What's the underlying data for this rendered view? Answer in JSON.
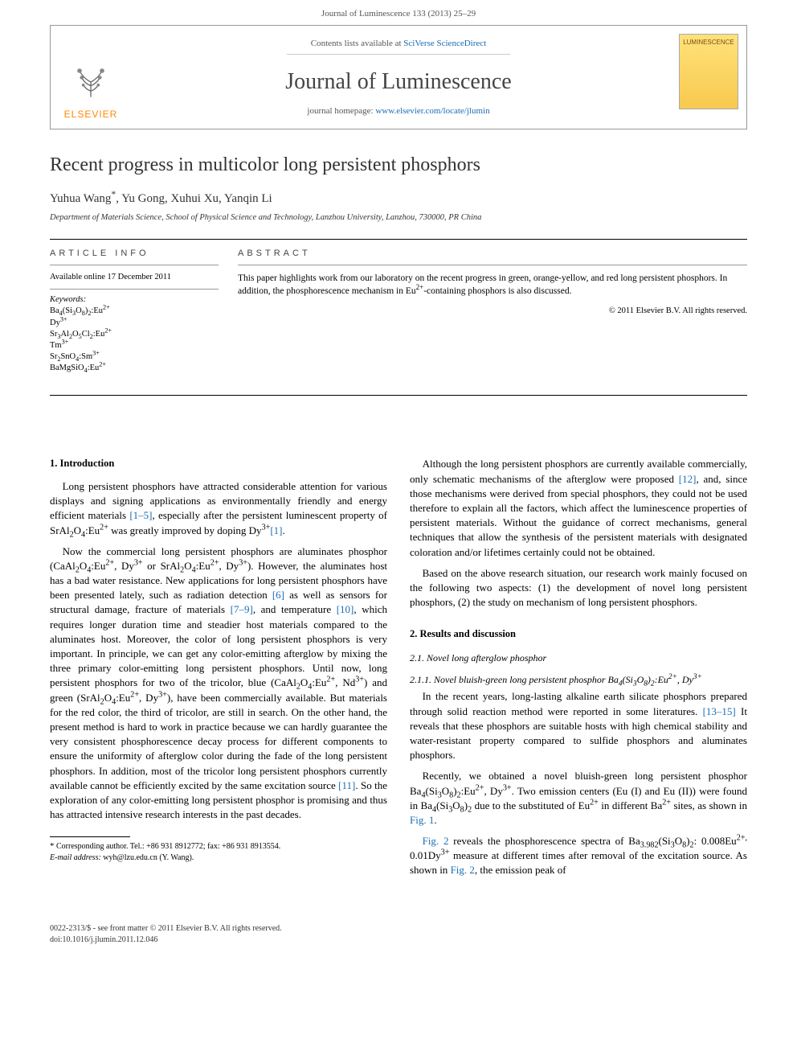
{
  "journal_ref": "Journal of Luminescence 133 (2013) 25–29",
  "masthead": {
    "contents_prefix": "Contents lists available at ",
    "contents_link": "SciVerse ScienceDirect",
    "journal_title": "Journal of Luminescence",
    "homepage_prefix": "journal homepage: ",
    "homepage_link": "www.elsevier.com/locate/jlumin",
    "publisher": "ELSEVIER",
    "cover_label": "LUMINESCENCE"
  },
  "article": {
    "title": "Recent progress in multicolor long persistent phosphors",
    "authors_html": "Yuhua Wang<sup>*</sup>, Yu Gong, Xuhui Xu, Yanqin Li",
    "affiliation": "Department of Materials Science, School of Physical Science and Technology, Lanzhou University, Lanzhou, 730000, PR China"
  },
  "info": {
    "info_label": "article info",
    "history": "Available online 17 December 2011",
    "keywords_head": "Keywords:",
    "keywords": [
      "Ba<sub>4</sub>(Si<sub>3</sub>O<sub>8</sub>)<sub>2</sub>:Eu<sup>2+</sup>",
      "Dy<sup>3+</sup>",
      "Sr<sub>3</sub>Al<sub>2</sub>O<sub>5</sub>Cl<sub>2</sub>:Eu<sup>2+</sup>",
      "Tm<sup>3+</sup>",
      "Sr<sub>2</sub>SnO<sub>4</sub>:Sm<sup>3+</sup>",
      "BaMgSiO<sub>4</sub>:Eu<sup>2+</sup>"
    ]
  },
  "abstract": {
    "label": "abstract",
    "text": "This paper highlights work from our laboratory on the recent progress in green, orange-yellow, and red long persistent phosphors. In addition, the phosphorescence mechanism in Eu<sup>2+</sup>-containing phosphors is also discussed.",
    "copyright": "© 2011 Elsevier B.V. All rights reserved."
  },
  "body": {
    "s1_head": "1.  Introduction",
    "p1": "Long persistent phosphors have attracted considerable attention for various displays and signing applications as environmentally friendly and energy efficient materials <span class=\"ref\">[1–5]</span>, especially after the persistent luminescent property of SrAl<sub>2</sub>O<sub>4</sub>:Eu<sup>2+</sup> was greatly improved by doping Dy<sup>3+</sup><span class=\"ref\">[1]</span>.",
    "p2": "Now the commercial long persistent phosphors are aluminates phosphor (CaAl<sub>2</sub>O<sub>4</sub>:Eu<sup>2+</sup>, Dy<sup>3+</sup> or SrAl<sub>2</sub>O<sub>4</sub>:Eu<sup>2+</sup>, Dy<sup>3+</sup>). However, the aluminates host has a bad water resistance. New applications for long persistent phosphors have been presented lately, such as radiation detection <span class=\"ref\">[6]</span> as well as sensors for structural damage, fracture of materials <span class=\"ref\">[7–9]</span>, and temperature <span class=\"ref\">[10]</span>, which requires longer duration time and steadier host materials compared to the aluminates host. Moreover, the color of long persistent phosphors is very important. In principle, we can get any color-emitting afterglow by mixing the three primary color-emitting long persistent phosphors. Until now, long persistent phosphors for two of the tricolor, blue (CaAl<sub>2</sub>O<sub>4</sub>:Eu<sup>2+</sup>, Nd<sup>3+</sup>) and green (SrAl<sub>2</sub>O<sub>4</sub>:Eu<sup>2+</sup>, Dy<sup>3+</sup>), have been commercially available. But materials for the red color, the third of tricolor, are still in search. On the other hand, the present method is hard to work in practice because we can hardly guarantee the very consistent phosphorescence decay process for different components to ensure the uniformity of afterglow color during the fade of the long persistent phosphors. In addition, most of the tricolor long persistent phosphors currently available cannot be efficiently excited by the same excitation source <span class=\"ref\">[11]</span>. So the exploration of any color-emitting long persistent phosphor is promising and thus has attracted intensive research interests in the past decades.",
    "p3": "Although the long persistent phosphors are currently available commercially, only schematic mechanisms of the afterglow were proposed <span class=\"ref\">[12]</span>, and, since those mechanisms were derived from special phosphors, they could not be used therefore to explain all the factors, which affect the luminescence properties of persistent materials. Without the guidance of correct mechanisms, general techniques that allow the synthesis of the persistent materials with designated coloration and/or lifetimes certainly could not be obtained.",
    "p4": "Based on the above research situation, our research work mainly focused on the following two aspects: (1) the development of novel long persistent phosphors, (2) the study on mechanism of long persistent phosphors.",
    "s2_head": "2.  Results and discussion",
    "s21_head": "2.1.  Novel long afterglow phosphor",
    "s211_head": "2.1.1.  Novel bluish-green long persistent phosphor Ba<sub>4</sub>(Si<sub>3</sub>O<sub>8</sub>)<sub>2</sub>:Eu<sup>2+</sup>, Dy<sup>3+</sup>",
    "p5": "In the recent years, long-lasting alkaline earth silicate phosphors prepared through solid reaction method were reported in some literatures. <span class=\"ref\">[13–15]</span> It reveals that these phosphors are suitable hosts with high chemical stability and water-resistant property compared to sulfide phosphors and aluminates phosphors.",
    "p6": "Recently, we obtained a novel bluish-green long persistent phosphor Ba<sub>4</sub>(Si<sub>3</sub>O<sub>8</sub>)<sub>2</sub>:Eu<sup>2+</sup>, Dy<sup>3+</sup>. Two emission centers (Eu (I) and Eu (II)) were found in Ba<sub>4</sub>(Si<sub>3</sub>O<sub>8</sub>)<sub>2</sub> due to the substituted of Eu<sup>2+</sup> in different Ba<sup>2+</sup> sites, as shown in <span class=\"ref\">Fig. 1</span>.",
    "p7": "<span class=\"ref\">Fig. 2</span> reveals the phosphorescence spectra of Ba<sub>3.982</sub>(Si<sub>3</sub>O<sub>8</sub>)<sub>2</sub>: 0.008Eu<sup>2+,</sup> 0.01Dy<sup>3+</sup> measure at different times after removal of the excitation source. As shown in <span class=\"ref\">Fig. 2</span>, the emission peak of"
  },
  "corr": {
    "line1": "<span class=\"star\">*</span> Corresponding author. Tel.: +86 931 8912772; fax: +86 931 8913554.",
    "line2": "<i>E-mail address:</i> wyh@lzu.edu.cn (Y. Wang)."
  },
  "footer": {
    "line1": "0022-2313/$ - see front matter © 2011 Elsevier B.V. All rights reserved.",
    "line2": "doi:10.1016/j.jlumin.2011.12.046"
  },
  "colors": {
    "link": "#1a6db3",
    "publisher": "#ff8800",
    "text": "#000000",
    "muted": "#555555"
  }
}
